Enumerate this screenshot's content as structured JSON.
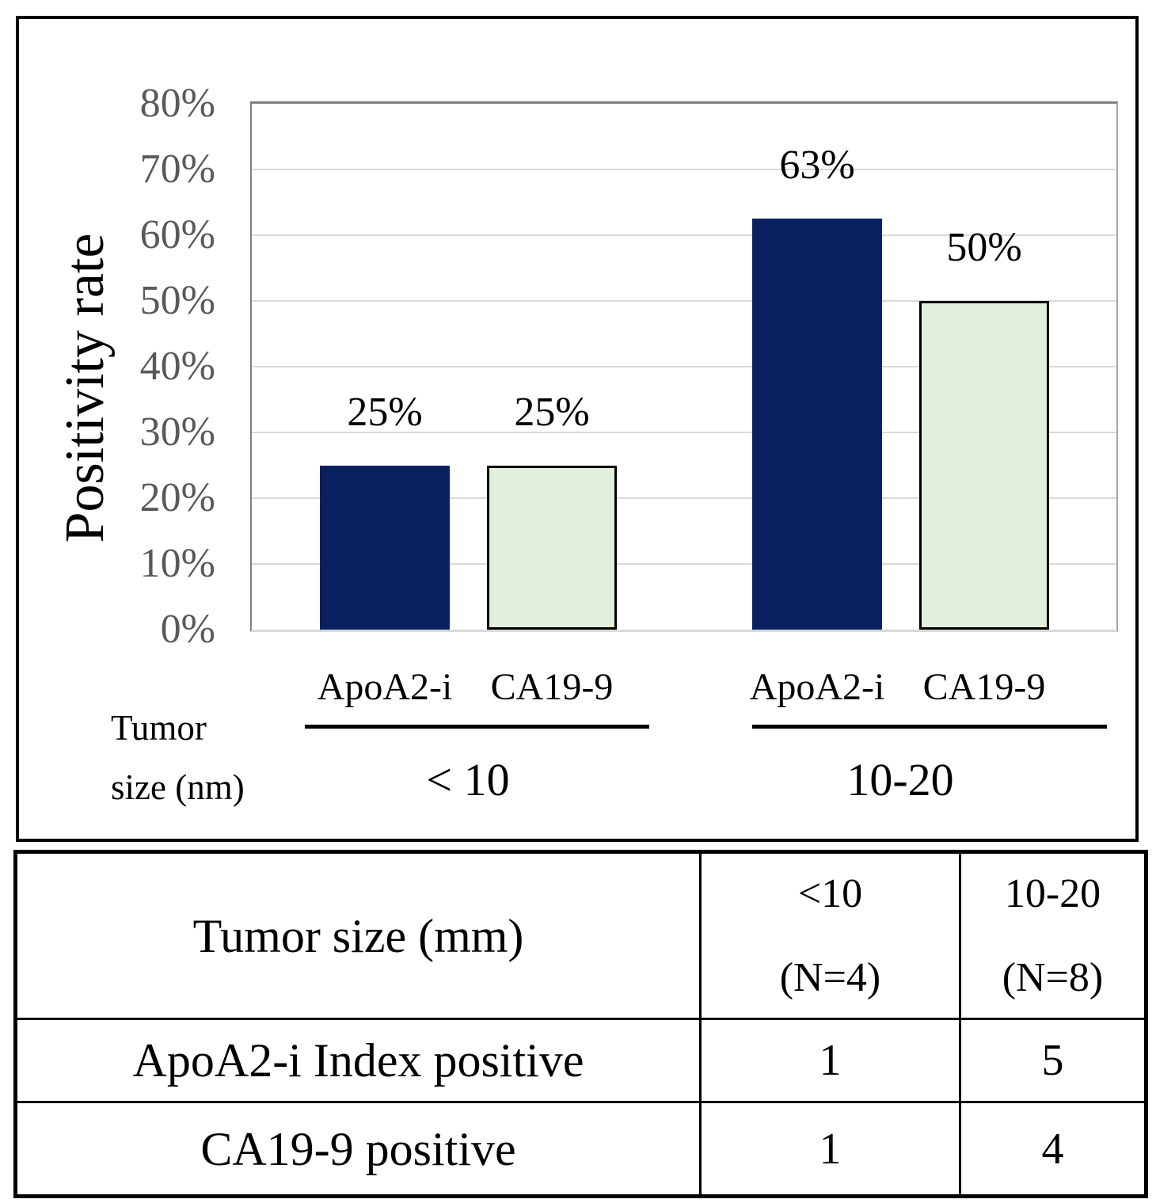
{
  "chart_data": {
    "type": "bar",
    "title": "",
    "ylabel": "Positivity rate",
    "xlabel": "",
    "ylim": [
      0,
      80
    ],
    "grid": "horizontal",
    "legend_position": "none",
    "yticks": [
      {
        "value": 0,
        "label": "0%"
      },
      {
        "value": 10,
        "label": "10%"
      },
      {
        "value": 20,
        "label": "20%"
      },
      {
        "value": 30,
        "label": "30%"
      },
      {
        "value": 40,
        "label": "40%"
      },
      {
        "value": 50,
        "label": "50%"
      },
      {
        "value": 60,
        "label": "60%"
      },
      {
        "value": 70,
        "label": "70%"
      },
      {
        "value": 80,
        "label": "80%"
      }
    ],
    "categories": [
      "< 10",
      "10-20"
    ],
    "series": [
      {
        "name": "ApoA2-i",
        "color": "#0a2161",
        "border": null,
        "values": [
          25,
          62.5
        ],
        "labels": [
          "25%",
          "63%"
        ]
      },
      {
        "name": "CA19-9",
        "color": "#e2efda",
        "border": "#000000",
        "values": [
          25,
          50
        ],
        "labels": [
          "25%",
          "50%"
        ]
      }
    ],
    "axis_note_line1": "Tumor",
    "axis_note_line2": "size (nm)"
  },
  "table": {
    "header_col1": "Tumor size (mm)",
    "header_col2_line1": "<10",
    "header_col2_line2": "(N=4)",
    "header_col3_line1": "10-20",
    "header_col3_line2": "(N=8)",
    "rows": [
      {
        "label": "ApoA2-i Index positive",
        "lt10": "1",
        "r1020": "5"
      },
      {
        "label": "CA19-9 positive",
        "lt10": "1",
        "r1020": "4"
      }
    ]
  },
  "colors": {
    "bar_navy": "#0a2161",
    "bar_green": "#e2efda",
    "bar_green_border": "#000000",
    "gridline": "#d9d9d9",
    "axis_line": "#808080",
    "tick_text": "#595959"
  }
}
